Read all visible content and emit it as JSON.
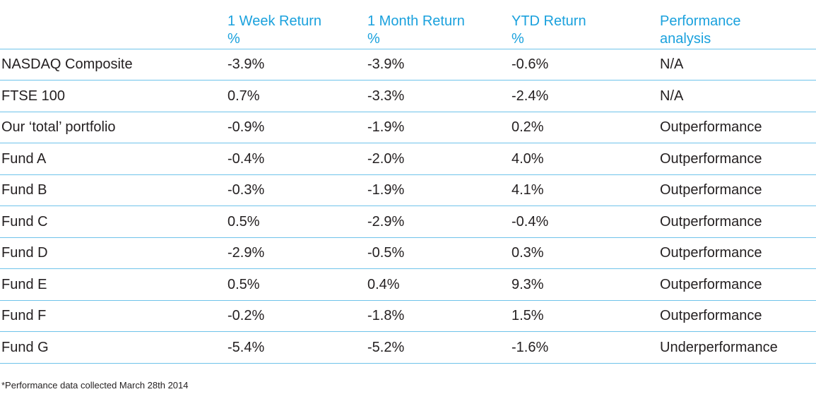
{
  "table": {
    "headers": [
      {
        "line1": "",
        "line2": ""
      },
      {
        "line1": "1 Week Return",
        "line2": "%"
      },
      {
        "line1": "1 Month Return",
        "line2": "%"
      },
      {
        "line1": "YTD Return",
        "line2": "%"
      },
      {
        "line1": "Performance",
        "line2": "analysis"
      }
    ],
    "rows": [
      [
        "NASDAQ Composite",
        "-3.9%",
        "-3.9%",
        "-0.6%",
        "N/A"
      ],
      [
        "FTSE 100",
        "0.7%",
        "-3.3%",
        "-2.4%",
        "N/A"
      ],
      [
        "Our ‘total’ portfolio",
        "-0.9%",
        "-1.9%",
        "0.2%",
        "Outperformance"
      ],
      [
        "Fund A",
        "-0.4%",
        "-2.0%",
        "4.0%",
        "Outperformance"
      ],
      [
        "Fund B",
        "-0.3%",
        "-1.9%",
        "4.1%",
        "Outperformance"
      ],
      [
        "Fund C",
        "0.5%",
        "-2.9%",
        "-0.4%",
        "Outperformance"
      ],
      [
        "Fund D",
        "-2.9%",
        "-0.5%",
        "0.3%",
        "Outperformance"
      ],
      [
        "Fund E",
        "0.5%",
        "0.4%",
        "9.3%",
        "Outperformance"
      ],
      [
        "Fund F",
        "-0.2%",
        "-1.8%",
        "1.5%",
        "Outperformance"
      ],
      [
        "Fund G",
        "-5.4%",
        "-5.2%",
        "-1.6%",
        "Underperformance"
      ]
    ]
  },
  "footnote": "*Performance data collected March 28th 2014",
  "colors": {
    "header_text": "#1aa1dd",
    "rule": "#6fc3ea",
    "body_text": "#231f20"
  }
}
